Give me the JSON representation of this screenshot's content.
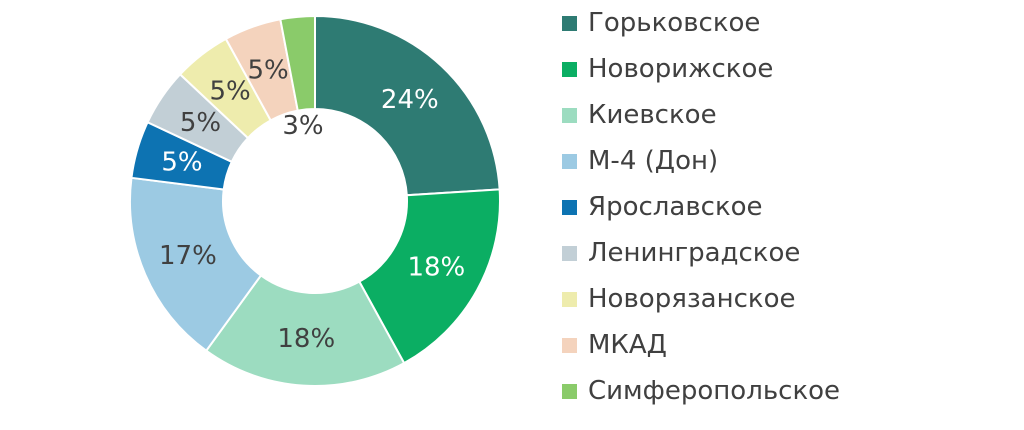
{
  "chart_data": {
    "type": "pie",
    "title": "",
    "legend_position": "right",
    "categories": [
      "Горьковское",
      "Новорижское",
      "Киевское",
      "М-4 (Дон)",
      "Ярославское",
      "Ленинградское",
      "Новорязанское",
      "МКАД",
      "Симферопольское"
    ],
    "values": [
      24,
      18,
      18,
      17,
      5,
      5,
      5,
      5,
      3
    ],
    "data_labels": [
      "24%",
      "18%",
      "18%",
      "17%",
      "5%",
      "5%",
      "5%",
      "5%",
      "3%"
    ],
    "colors": [
      "#2e7b73",
      "#0bae63",
      "#9cdcc0",
      "#9ccae3",
      "#0d73b2",
      "#c2cfd6",
      "#eeecad",
      "#f4d3bd",
      "#8acb6a"
    ],
    "label_colors": [
      "#ffffff",
      "#ffffff",
      "#404040",
      "#404040",
      "#ffffff",
      "#404040",
      "#404040",
      "#404040",
      "#404040"
    ]
  }
}
